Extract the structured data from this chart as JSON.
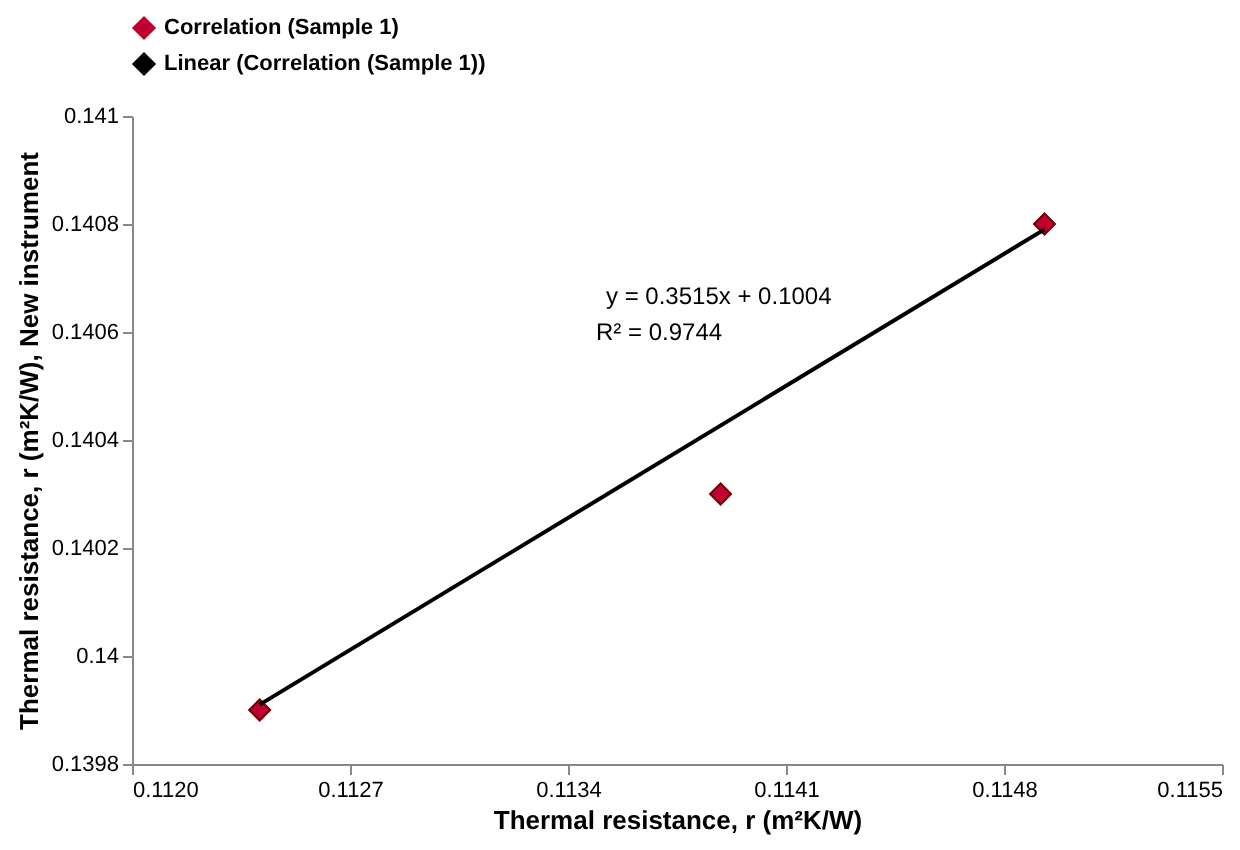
{
  "chart_data": {
    "type": "scatter",
    "xlabel": "Thermal resistance, r (m²K/W)",
    "ylabel": "Thermal resistance, r (m²K/W), New  instrument",
    "annotations": [
      "y = 0.3515x + 0.1004",
      "R² = 0.9744"
    ],
    "series": [
      {
        "name": "Correlation (Sample 1)",
        "color": "#c00030",
        "marker": "diamond",
        "x": [
          0.11241,
          0.11389,
          0.11493
        ],
        "values": [
          0.1399,
          0.1403,
          0.1408
        ]
      },
      {
        "name": "Linear (Correlation (Sample 1))",
        "type": "line",
        "color": "#000000",
        "line_style": "solid",
        "x": [
          0.11241,
          0.11493
        ],
        "values": [
          0.13991,
          0.14079
        ]
      }
    ],
    "xlim": [
      0.112,
      0.1155
    ],
    "xticks": [
      {
        "value": 0.112,
        "label": "0.1120"
      },
      0.1127,
      0.1134,
      0.1141,
      0.1148,
      0.1155
    ],
    "ylim": [
      0.1398,
      0.141
    ],
    "yticks": [
      0.1398,
      0.14,
      0.1402,
      0.1404,
      0.1406,
      0.1408,
      0.141
    ],
    "grid": false,
    "legend": "top"
  }
}
